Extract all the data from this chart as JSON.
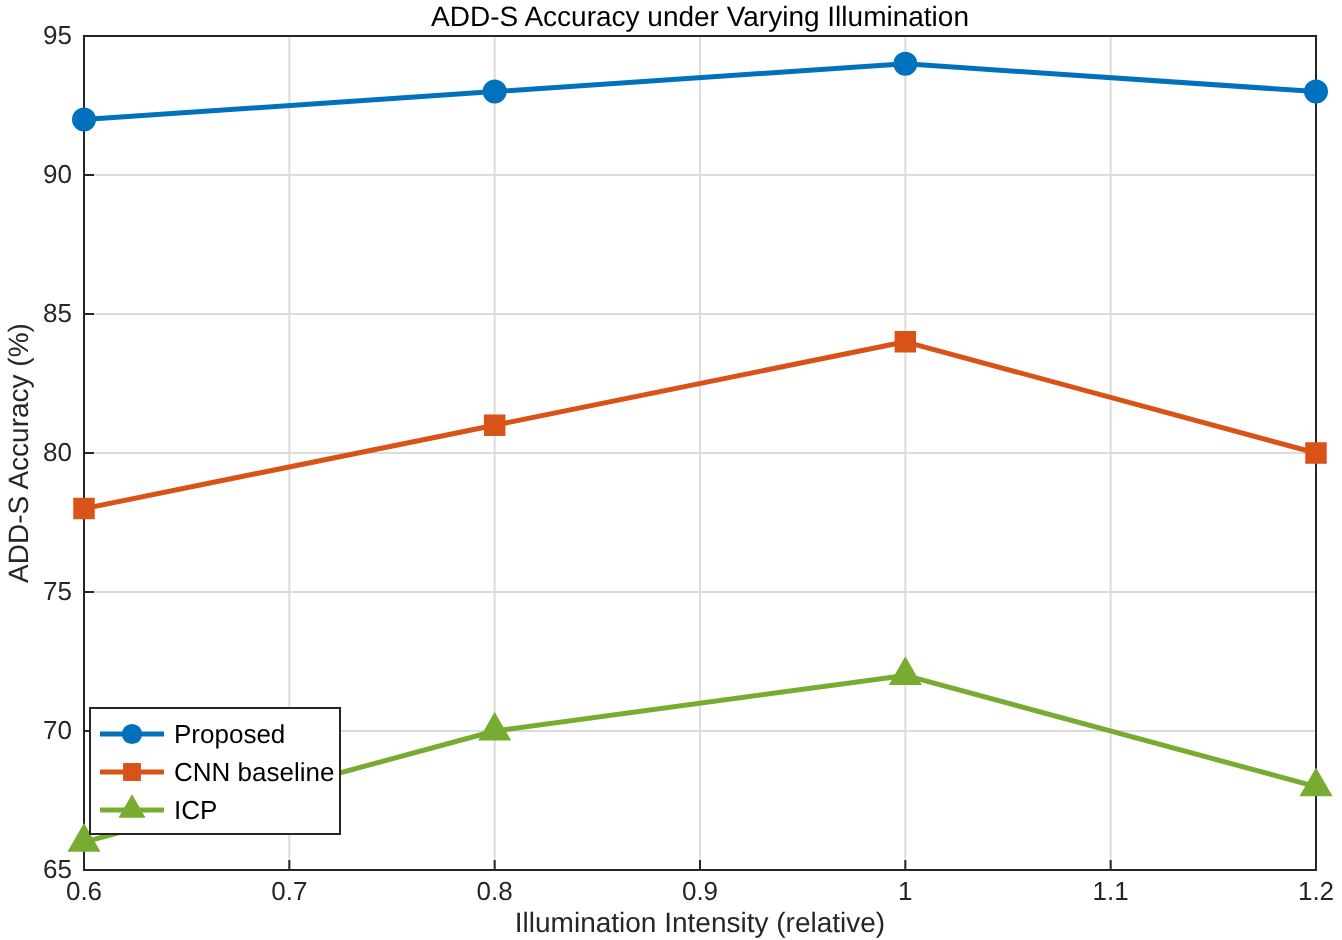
{
  "chart_data": {
    "type": "line",
    "title": "ADD-S Accuracy under Varying Illumination",
    "xlabel": "Illumination Intensity (relative)",
    "ylabel": "ADD-S Accuracy (%)",
    "x": [
      0.6,
      0.8,
      1,
      1.2
    ],
    "series": [
      {
        "name": "Proposed",
        "color": "#0072bd",
        "marker": "circle",
        "values": [
          92,
          93,
          94,
          93
        ]
      },
      {
        "name": "CNN baseline",
        "color": "#d95319",
        "marker": "square",
        "values": [
          78,
          81,
          84,
          80
        ]
      },
      {
        "name": "ICP",
        "color": "#77ac30",
        "marker": "triangle",
        "values": [
          66,
          70,
          72,
          68
        ]
      }
    ],
    "xlim": [
      0.6,
      1.2
    ],
    "xticks": [
      0.6,
      0.7,
      0.8,
      0.9,
      1,
      1.1,
      1.2
    ],
    "ylim": [
      65,
      95
    ],
    "yticks": [
      65,
      70,
      75,
      80,
      85,
      90,
      95
    ],
    "grid": true,
    "legend": "bottom left",
    "line_style": "solid"
  }
}
